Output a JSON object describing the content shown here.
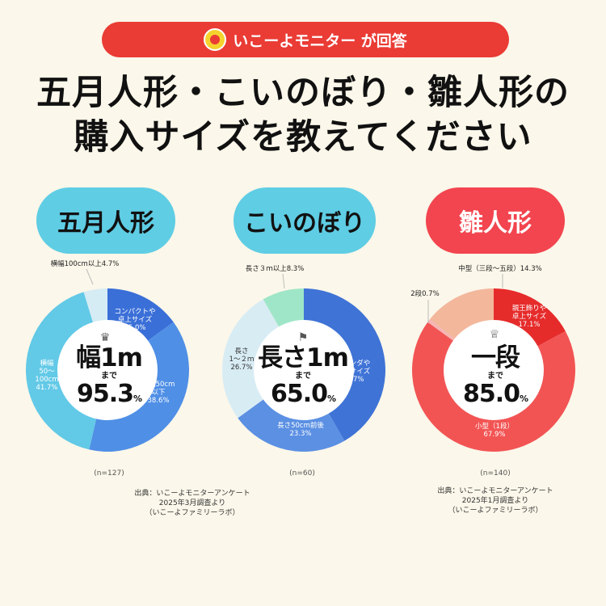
{
  "banner": {
    "text": "いこーよモニター が回答"
  },
  "title": {
    "line1": "五月人形・こいのぼり・雛人形の",
    "line2": "購入サイズを教えてください"
  },
  "colors": {
    "background": "#fbf7ea",
    "banner": "#ea3b35",
    "pill_blue": "#5fcde4",
    "pill_red": "#f2454f"
  },
  "chart_data": [
    {
      "type": "pie",
      "title": "五月人形",
      "center": {
        "main": "幅1m",
        "sub": "まで",
        "value": "95.3",
        "unit": "%"
      },
      "n": "(n=127)",
      "slices": [
        {
          "label": "横幅50cm以下",
          "value": 38.6,
          "color": "#4f8fe6",
          "text_lines": [
            "横幅50cm",
            "以下",
            "38.6%"
          ]
        },
        {
          "label": "横幅50~100cm",
          "value": 41.7,
          "color": "#62c9e7",
          "text_lines": [
            "横幅",
            "50～",
            "100cm",
            "41.7%"
          ]
        },
        {
          "label": "横幅100cm以上",
          "value": 4.7,
          "color": "#d6ecf4",
          "text_lines": [
            "横幅100cm以上4.7%"
          ]
        },
        {
          "label": "コンパクトや卓上サイズ",
          "value": 15.0,
          "color": "#3a6fd8",
          "text_lines": [
            "コンパクトや",
            "卓上サイズ",
            "15.0%"
          ]
        }
      ],
      "source": [
        "出典：いこーよモニターアンケート",
        "2025年3月調査より",
        "（いこーよファミリーラボ）"
      ]
    },
    {
      "type": "pie",
      "title": "こいのぼり",
      "center": {
        "main": "長さ1m",
        "sub": "まで",
        "value": "65.0",
        "unit": "%"
      },
      "n": "(n=60)",
      "slices": [
        {
          "label": "ベランダや卓上サイズ",
          "value": 41.7,
          "color": "#3f73d6",
          "text_lines": [
            "ベランダや",
            "卓上サイズ",
            "41.7%"
          ]
        },
        {
          "label": "長さ50cm前後",
          "value": 23.3,
          "color": "#5b90e3",
          "text_lines": [
            "長さ50cm前後",
            "23.3%"
          ]
        },
        {
          "label": "長さ1~2m",
          "value": 26.7,
          "color": "#d8ecf4",
          "text_lines": [
            "長さ",
            "1～２ｍ",
            "26.7%"
          ]
        },
        {
          "label": "長さ3m以上",
          "value": 8.3,
          "color": "#9ee6c7",
          "text_lines": [
            "長さ３ｍ以上8.3%"
          ]
        }
      ],
      "source": []
    },
    {
      "type": "pie",
      "title": "雛人形",
      "center": {
        "main": "一段",
        "sub": "まで",
        "value": "85.0",
        "unit": "%"
      },
      "n": "(n=140)",
      "slices": [
        {
          "label": "親王飾りや卓上サイズ",
          "value": 17.1,
          "color": "#e62b2b",
          "text_lines": [
            "親王飾りや",
            "卓上サイズ",
            "17.1%"
          ]
        },
        {
          "label": "小型（1段）",
          "value": 67.9,
          "color": "#f25454",
          "text_lines": [
            "小型（1段）",
            "67.9%"
          ]
        },
        {
          "label": "2段",
          "value": 0.7,
          "color": "#f6b4b4",
          "text_lines": [
            "2段0.7%"
          ]
        },
        {
          "label": "中型（三段～五段）",
          "value": 14.3,
          "color": "#f3b79c",
          "text_lines": [
            "中型（三段～五段）14.3%"
          ]
        }
      ],
      "source": [
        "出典：いこーよモニターアンケート",
        "2025年1月調査より",
        "（いこーよファミリーラボ）"
      ]
    }
  ]
}
